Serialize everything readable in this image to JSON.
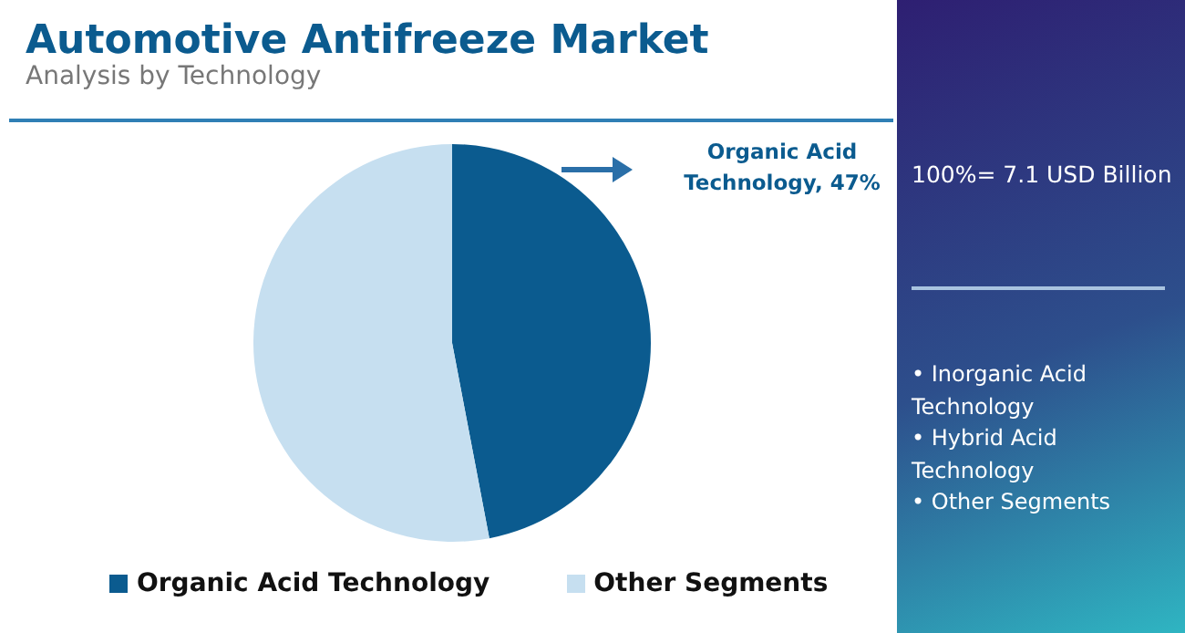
{
  "chart_data": {
    "type": "pie",
    "title": "Automotive Antifreeze Market",
    "subtitle": "Analysis by Technology",
    "categories": [
      "Organic Acid Technology",
      "Other Segments"
    ],
    "values": [
      47,
      53
    ],
    "colors": [
      "#0b5b8f",
      "#c6dff0"
    ],
    "legend": "bottom",
    "annotations": [
      "Organic Acid Technology, 47%",
      "100%= 7.1 USD Billion",
      "• Inorganic Acid Technology",
      "• Hybrid Acid Technology",
      "• Other Segments"
    ]
  }
}
